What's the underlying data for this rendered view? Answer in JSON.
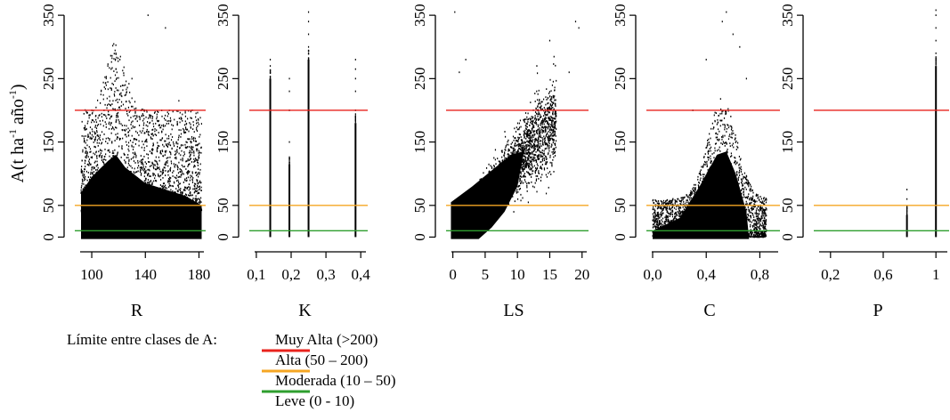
{
  "ylabel_parts": {
    "main": "A(t ha",
    "sup1": "-1",
    "mid": " año",
    "sup2": "-1",
    "end": ")"
  },
  "legend": {
    "title": "Límite entre clases de A:",
    "entries": [
      {
        "label": "Muy Alta (>200)",
        "color": "#e8231d",
        "y": 200
      },
      {
        "label": "Alta (50 – 200)",
        "color": "#f5a623",
        "y": 50
      },
      {
        "label": "Moderada (10 – 50)",
        "color": "#2e9e2e",
        "y": 10
      },
      {
        "label": "Leve (0 - 10)",
        "color": null,
        "y": 0
      }
    ]
  },
  "chart_data": [
    {
      "type": "scatter",
      "xlabel": "R",
      "xlim": [
        90,
        185
      ],
      "ylim": [
        -5,
        360
      ],
      "xticks": [
        100,
        140,
        180
      ],
      "xtick_labels": [
        "100",
        "140",
        "180"
      ],
      "yticks": [
        0,
        50,
        150,
        250,
        350
      ],
      "ytick_labels": [
        "0",
        "50",
        "150",
        "250",
        "350"
      ],
      "hlines": [
        200,
        50,
        10
      ],
      "distribution": "dense cloud x 92–182, mostly y 0–100, peak near x≈118 up to ~290, outliers to 350",
      "points": [
        [
          118,
          290
        ],
        [
          121,
          280
        ],
        [
          112,
          270
        ],
        [
          155,
          330
        ],
        [
          142,
          350
        ],
        [
          130,
          250
        ],
        [
          165,
          215
        ],
        [
          175,
          200
        ],
        [
          100,
          200
        ],
        [
          107,
          230
        ]
      ]
    },
    {
      "type": "scatter",
      "xlabel": "K",
      "xlim": [
        0.09,
        0.42
      ],
      "ylim": [
        -5,
        360
      ],
      "xticks": [
        0.1,
        0.2,
        0.3,
        0.4
      ],
      "xtick_labels": [
        "0,1",
        "0,2",
        "0,3",
        "0,4"
      ],
      "yticks": [
        0,
        50,
        150,
        250,
        350
      ],
      "ytick_labels": [
        "0",
        "50",
        "150",
        "250",
        "350"
      ],
      "hlines": [
        200,
        50,
        10
      ],
      "distribution": "vertical strips at discrete K values",
      "strips": [
        {
          "x": 0.14,
          "ymax": 250,
          "outliers": [
            270,
            280
          ]
        },
        {
          "x": 0.195,
          "ymax": 115,
          "outliers": [
            150,
            200,
            230,
            250
          ]
        },
        {
          "x": 0.25,
          "ymax": 280,
          "outliers": [
            300,
            320,
            340,
            355
          ]
        },
        {
          "x": 0.385,
          "ymax": 180,
          "outliers": [
            200,
            230,
            250,
            265,
            280
          ]
        }
      ]
    },
    {
      "type": "scatter",
      "xlabel": "LS",
      "xlim": [
        -0.5,
        21
      ],
      "ylim": [
        -5,
        360
      ],
      "xticks": [
        0,
        5,
        10,
        15,
        20
      ],
      "xtick_labels": [
        "0",
        "5",
        "10",
        "15",
        "20"
      ],
      "yticks": [
        0,
        50,
        150,
        250,
        350
      ],
      "ytick_labels": [
        "0",
        "50",
        "150",
        "250",
        "350"
      ],
      "hlines": [
        200,
        50,
        10
      ],
      "distribution": "increasing trend: dense near origin, cloud extends to (15, 250)",
      "points": [
        [
          0.3,
          355
        ],
        [
          19,
          340
        ],
        [
          19.5,
          330
        ],
        [
          1,
          260
        ],
        [
          2,
          280
        ],
        [
          15,
          310
        ],
        [
          18,
          260
        ],
        [
          13,
          270
        ]
      ]
    },
    {
      "type": "scatter",
      "xlabel": "C",
      "xlim": [
        -0.02,
        0.95
      ],
      "ylim": [
        -5,
        360
      ],
      "xticks": [
        0.0,
        0.4,
        0.8
      ],
      "xtick_labels": [
        "0,0",
        "0,4",
        "0,8"
      ],
      "yticks": [
        0,
        50,
        150,
        250,
        350
      ],
      "ytick_labels": [
        "0",
        "50",
        "150",
        "250",
        "350"
      ],
      "hlines": [
        200,
        50,
        10
      ],
      "distribution": "dense triangular cloud peaking around C≈0.5",
      "points": [
        [
          0.55,
          355
        ],
        [
          0.52,
          340
        ],
        [
          0.6,
          320
        ],
        [
          0.4,
          280
        ],
        [
          0.65,
          300
        ],
        [
          0.3,
          200
        ],
        [
          0.7,
          250
        ]
      ]
    },
    {
      "type": "scatter",
      "xlabel": "P",
      "xlim": [
        0.1,
        1.1
      ],
      "ylim": [
        -5,
        360
      ],
      "xticks": [
        0.2,
        0.6,
        1.0
      ],
      "xtick_labels": [
        "0,2",
        "0,6",
        "1"
      ],
      "yticks": [
        0,
        50,
        150,
        250,
        350
      ],
      "ytick_labels": [
        "0",
        "50",
        "150",
        "250",
        "350"
      ],
      "hlines": [
        200,
        50,
        10
      ],
      "distribution": "vertical strips at P=0.78 and P=1",
      "strips": [
        {
          "x": 0.78,
          "ymax": 35,
          "outliers": [
            45,
            60,
            75
          ]
        },
        {
          "x": 1.0,
          "ymax": 270,
          "outliers": [
            290,
            310,
            330,
            350,
            358
          ]
        }
      ]
    }
  ]
}
